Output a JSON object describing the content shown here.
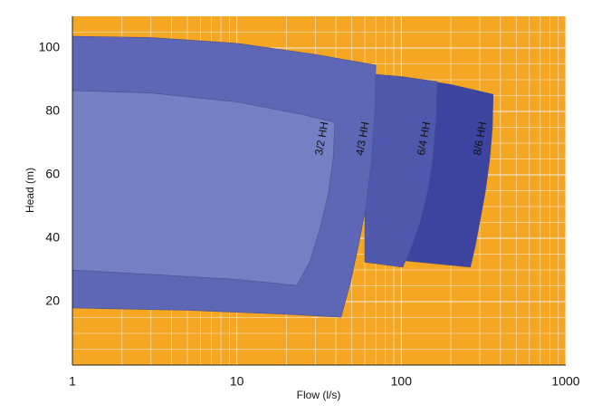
{
  "chart_data": {
    "type": "region",
    "x_label": "Flow (l/s)",
    "y_label": "Head (m)",
    "xscale": "log",
    "xlim": [
      1,
      1000
    ],
    "ylim": [
      0,
      110
    ],
    "xticks": [
      1,
      10,
      100,
      1000
    ],
    "yticks": [
      20,
      40,
      60,
      80,
      100
    ],
    "x_minor_ticks": [
      2,
      3,
      4,
      5,
      6,
      7,
      8,
      9,
      20,
      30,
      40,
      50,
      60,
      70,
      80,
      90,
      200,
      300,
      400,
      500,
      600,
      700,
      800,
      900
    ],
    "y_minor_ticks": [
      5,
      10,
      15,
      25,
      30,
      35,
      45,
      50,
      55,
      65,
      70,
      75,
      85,
      90,
      95,
      105
    ],
    "grid": true,
    "background": "#f5a623",
    "series": [
      {
        "name": "8/6 HH",
        "color": "#3c44a0",
        "x": [
          100,
          200,
          362,
          358,
          345,
          325,
          300,
          280,
          263,
          100
        ],
        "y": [
          91,
          88.5,
          85.4,
          75,
          65,
          55,
          45,
          37,
          30.9,
          33
        ]
      },
      {
        "name": "6/4 HH",
        "color": "#5058ad",
        "x": [
          60,
          100,
          165,
          163,
          155,
          145,
          130,
          115,
          102,
          60
        ],
        "y": [
          92,
          91,
          89.4,
          78,
          65,
          55,
          45,
          37,
          30.9,
          32.5
        ]
      },
      {
        "name": "4/3 HH",
        "color": "#5e67b5",
        "x": [
          1,
          3,
          10,
          30,
          70,
          69,
          66,
          61,
          55,
          49,
          43,
          20,
          5,
          1
        ],
        "y": [
          103.7,
          103.3,
          101.5,
          98,
          94.6,
          80,
          65,
          50,
          38,
          26,
          15.1,
          16,
          17.3,
          18
        ]
      },
      {
        "name": "3/2 HH",
        "color": "#7580c4",
        "x": [
          1,
          3,
          10,
          25,
          39.5,
          38.5,
          36,
          32,
          28,
          23.2,
          10,
          3,
          1
        ],
        "y": [
          86.6,
          85.8,
          83,
          79,
          76.6,
          65,
          54,
          43,
          33,
          25.1,
          27,
          28.6,
          30
        ]
      }
    ]
  }
}
